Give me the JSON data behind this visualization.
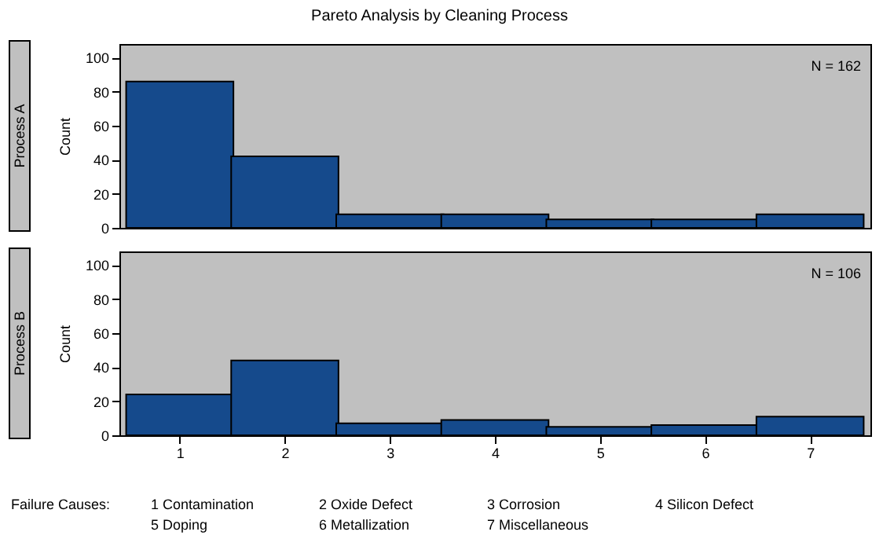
{
  "chart_data": [
    {
      "type": "bar",
      "title": "Pareto Analysis by Cleaning Process",
      "categories": [
        "1",
        "2",
        "3",
        "4",
        "5",
        "6",
        "7"
      ],
      "values": [
        86,
        42,
        8,
        8,
        5,
        5,
        8
      ],
      "color": "#154a8c",
      "ylabel": "Count",
      "ylim": [
        0,
        108
      ],
      "yticks": [
        0,
        20,
        40,
        60,
        80,
        100
      ],
      "grid": false,
      "tick_labels": "y",
      "annotations": [
        "Process A",
        "N = 162"
      ]
    },
    {
      "type": "bar",
      "categories": [
        "1",
        "2",
        "3",
        "4",
        "5",
        "6",
        "7"
      ],
      "values": [
        24,
        44,
        7,
        9,
        5,
        6,
        11
      ],
      "color": "#154a8c",
      "ylabel": "Count",
      "ylim": [
        0,
        108
      ],
      "yticks": [
        0,
        20,
        40,
        60,
        80,
        100
      ],
      "grid": false,
      "annotations": [
        "Process B",
        "N = 106",
        "Failure Causes:",
        "1 Contamination",
        "2 Oxide Defect",
        "3 Corrosion",
        "4 Silicon Defect",
        "5 Doping",
        "6 Metallization",
        "7 Miscellaneous"
      ]
    }
  ]
}
